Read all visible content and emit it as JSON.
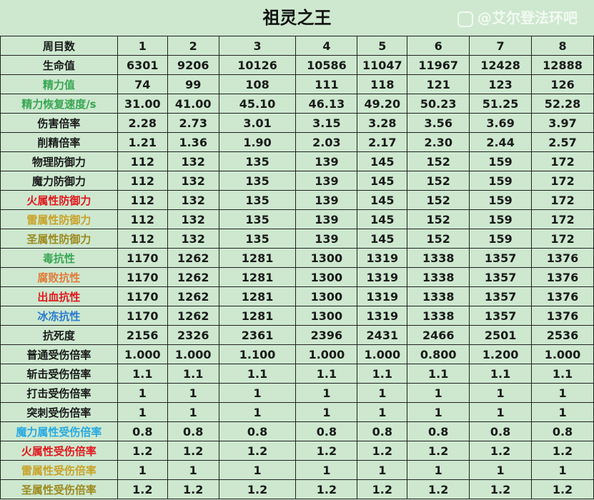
{
  "title": "祖灵之王",
  "header": {
    "label": "周目数",
    "columns": [
      "1",
      "2",
      "3",
      "4",
      "5",
      "6",
      "7",
      "8"
    ]
  },
  "colors": {
    "background": "#cde8cf",
    "green": "#3aa655",
    "red": "#e3161c",
    "gold": "#c9a227",
    "olive": "#9c8a1e",
    "orange": "#e07b39",
    "blue": "#2a7bd0",
    "cyan": "#27a9e1"
  },
  "rows": [
    {
      "label": "生命值",
      "color": "#1a1a1a",
      "values": [
        "6301",
        "9206",
        "10126",
        "10586",
        "11047",
        "11967",
        "12428",
        "12888"
      ]
    },
    {
      "label": "精力值",
      "color": "#3aa655",
      "values": [
        "74",
        "99",
        "108",
        "111",
        "118",
        "121",
        "123",
        "126"
      ]
    },
    {
      "label": "精力恢复速度/s",
      "color": "#3aa655",
      "values": [
        "31.00",
        "41.00",
        "45.10",
        "46.13",
        "49.20",
        "50.23",
        "51.25",
        "52.28"
      ]
    },
    {
      "label": "伤害倍率",
      "color": "#1a1a1a",
      "values": [
        "2.28",
        "2.73",
        "3.01",
        "3.15",
        "3.28",
        "3.56",
        "3.69",
        "3.97"
      ]
    },
    {
      "label": "削精倍率",
      "color": "#1a1a1a",
      "values": [
        "1.21",
        "1.36",
        "1.90",
        "2.03",
        "2.17",
        "2.30",
        "2.44",
        "2.57"
      ]
    },
    {
      "label": "物理防御力",
      "color": "#1a1a1a",
      "values": [
        "112",
        "132",
        "135",
        "139",
        "145",
        "152",
        "159",
        "172"
      ]
    },
    {
      "label": "魔力防御力",
      "color": "#1a1a1a",
      "values": [
        "112",
        "132",
        "135",
        "139",
        "145",
        "152",
        "159",
        "172"
      ]
    },
    {
      "label": "火属性防御力",
      "color": "#e3161c",
      "values": [
        "112",
        "132",
        "135",
        "139",
        "145",
        "152",
        "159",
        "172"
      ]
    },
    {
      "label": "雷属性防御力",
      "color": "#c9a227",
      "values": [
        "112",
        "132",
        "135",
        "139",
        "145",
        "152",
        "159",
        "172"
      ]
    },
    {
      "label": "圣属性防御力",
      "color": "#9c8a1e",
      "values": [
        "112",
        "132",
        "135",
        "139",
        "145",
        "152",
        "159",
        "172"
      ]
    },
    {
      "label": "毒抗性",
      "color": "#3aa655",
      "values": [
        "1170",
        "1262",
        "1281",
        "1300",
        "1319",
        "1338",
        "1357",
        "1376"
      ]
    },
    {
      "label": "腐败抗性",
      "color": "#e07b39",
      "values": [
        "1170",
        "1262",
        "1281",
        "1300",
        "1319",
        "1338",
        "1357",
        "1376"
      ]
    },
    {
      "label": "出血抗性",
      "color": "#e3161c",
      "values": [
        "1170",
        "1262",
        "1281",
        "1300",
        "1319",
        "1338",
        "1357",
        "1376"
      ]
    },
    {
      "label": "冰冻抗性",
      "color": "#2a7bd0",
      "values": [
        "1170",
        "1262",
        "1281",
        "1300",
        "1319",
        "1338",
        "1357",
        "1376"
      ]
    },
    {
      "label": "抗死度",
      "color": "#1a1a1a",
      "values": [
        "2156",
        "2326",
        "2361",
        "2396",
        "2431",
        "2466",
        "2501",
        "2536"
      ]
    },
    {
      "label": "普通受伤倍率",
      "color": "#1a1a1a",
      "values": [
        "1.000",
        "1.000",
        "1.100",
        "1.000",
        "1.000",
        "0.800",
        "1.200",
        "1.000"
      ]
    },
    {
      "label": "斩击受伤倍率",
      "color": "#1a1a1a",
      "values": [
        "1.1",
        "1.1",
        "1.1",
        "1.1",
        "1.1",
        "1.1",
        "1.1",
        "1.1"
      ]
    },
    {
      "label": "打击受伤倍率",
      "color": "#1a1a1a",
      "values": [
        "1",
        "1",
        "1",
        "1",
        "1",
        "1",
        "1",
        "1"
      ]
    },
    {
      "label": "突刺受伤倍率",
      "color": "#1a1a1a",
      "values": [
        "1",
        "1",
        "1",
        "1",
        "1",
        "1",
        "1",
        "1"
      ]
    },
    {
      "label": "魔力属性受伤倍率",
      "color": "#27a9e1",
      "values": [
        "0.8",
        "0.8",
        "0.8",
        "0.8",
        "0.8",
        "0.8",
        "0.8",
        "0.8"
      ]
    },
    {
      "label": "火属性受伤倍率",
      "color": "#e3161c",
      "values": [
        "1.2",
        "1.2",
        "1.2",
        "1.2",
        "1.2",
        "1.2",
        "1.2",
        "1.2"
      ]
    },
    {
      "label": "雷属性受伤倍率",
      "color": "#c9a227",
      "values": [
        "1",
        "1",
        "1",
        "1",
        "1",
        "1",
        "1",
        "1"
      ]
    },
    {
      "label": "圣属性受伤倍率",
      "color": "#9c8a1e",
      "values": [
        "1.2",
        "1.2",
        "1.2",
        "1.2",
        "1.2",
        "1.2",
        "1.2",
        "1.2"
      ]
    }
  ],
  "watermark": "@艾尔登法环吧"
}
